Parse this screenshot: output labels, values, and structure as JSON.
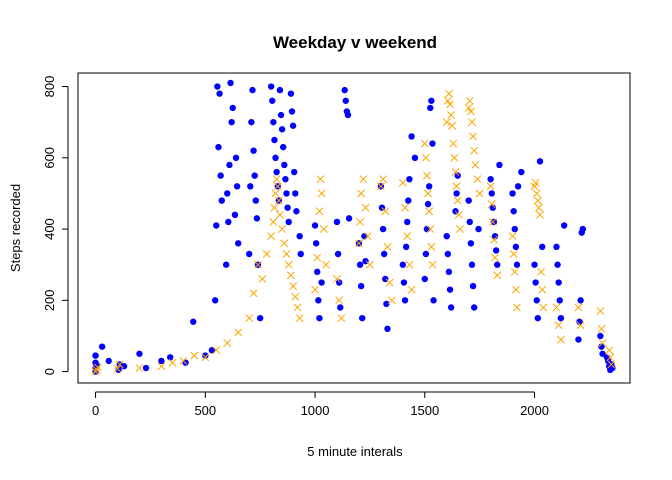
{
  "chart_data": {
    "type": "scatter",
    "title": "Weekday v weekend",
    "xlabel": "5 minute interals",
    "ylabel": "Steps recorded",
    "xlim": [
      -80,
      2435
    ],
    "ylim": [
      -32,
      838
    ],
    "xticks": [
      0,
      500,
      1000,
      1500,
      2000
    ],
    "yticks": [
      0,
      200,
      400,
      600,
      800
    ],
    "grid": false,
    "legend": "none",
    "series": [
      {
        "color": "#0000ff",
        "marker": "filled-circle",
        "points": [
          [
            0,
            0
          ],
          [
            0,
            10
          ],
          [
            0,
            25
          ],
          [
            0,
            45
          ],
          [
            5,
            18
          ],
          [
            30,
            70
          ],
          [
            60,
            30
          ],
          [
            105,
            5
          ],
          [
            110,
            20
          ],
          [
            130,
            15
          ],
          [
            200,
            50
          ],
          [
            230,
            10
          ],
          [
            300,
            30
          ],
          [
            340,
            40
          ],
          [
            410,
            25
          ],
          [
            445,
            140
          ],
          [
            500,
            45
          ],
          [
            530,
            60
          ],
          [
            545,
            200
          ],
          [
            550,
            410
          ],
          [
            555,
            800
          ],
          [
            560,
            630
          ],
          [
            565,
            780
          ],
          [
            570,
            550
          ],
          [
            575,
            480
          ],
          [
            595,
            300
          ],
          [
            600,
            500
          ],
          [
            605,
            420
          ],
          [
            610,
            580
          ],
          [
            615,
            810
          ],
          [
            620,
            700
          ],
          [
            625,
            740
          ],
          [
            635,
            440
          ],
          [
            640,
            600
          ],
          [
            645,
            520
          ],
          [
            650,
            360
          ],
          [
            700,
            330
          ],
          [
            705,
            520
          ],
          [
            710,
            700
          ],
          [
            715,
            790
          ],
          [
            720,
            620
          ],
          [
            725,
            550
          ],
          [
            730,
            480
          ],
          [
            735,
            430
          ],
          [
            740,
            300
          ],
          [
            750,
            150
          ],
          [
            800,
            800
          ],
          [
            805,
            760
          ],
          [
            810,
            700
          ],
          [
            815,
            650
          ],
          [
            820,
            600
          ],
          [
            825,
            560
          ],
          [
            830,
            520
          ],
          [
            835,
            480
          ],
          [
            840,
            790
          ],
          [
            845,
            720
          ],
          [
            850,
            680
          ],
          [
            855,
            630
          ],
          [
            860,
            580
          ],
          [
            865,
            540
          ],
          [
            870,
            500
          ],
          [
            875,
            460
          ],
          [
            880,
            420
          ],
          [
            890,
            780
          ],
          [
            895,
            730
          ],
          [
            900,
            690
          ],
          [
            905,
            560
          ],
          [
            910,
            500
          ],
          [
            915,
            450
          ],
          [
            930,
            380
          ],
          [
            935,
            330
          ],
          [
            1000,
            410
          ],
          [
            1005,
            360
          ],
          [
            1010,
            280
          ],
          [
            1015,
            200
          ],
          [
            1020,
            150
          ],
          [
            1030,
            250
          ],
          [
            1100,
            420
          ],
          [
            1105,
            330
          ],
          [
            1110,
            250
          ],
          [
            1115,
            180
          ],
          [
            1135,
            790
          ],
          [
            1140,
            760
          ],
          [
            1145,
            730
          ],
          [
            1150,
            720
          ],
          [
            1155,
            430
          ],
          [
            1200,
            360
          ],
          [
            1205,
            300
          ],
          [
            1210,
            240
          ],
          [
            1215,
            150
          ],
          [
            1225,
            380
          ],
          [
            1230,
            310
          ],
          [
            1300,
            520
          ],
          [
            1305,
            460
          ],
          [
            1310,
            400
          ],
          [
            1315,
            330
          ],
          [
            1320,
            260
          ],
          [
            1325,
            190
          ],
          [
            1330,
            120
          ],
          [
            1400,
            300
          ],
          [
            1405,
            250
          ],
          [
            1410,
            200
          ],
          [
            1415,
            350
          ],
          [
            1420,
            420
          ],
          [
            1425,
            480
          ],
          [
            1430,
            540
          ],
          [
            1440,
            660
          ],
          [
            1455,
            600
          ],
          [
            1500,
            260
          ],
          [
            1505,
            330
          ],
          [
            1510,
            400
          ],
          [
            1515,
            470
          ],
          [
            1520,
            520
          ],
          [
            1525,
            740
          ],
          [
            1530,
            760
          ],
          [
            1535,
            640
          ],
          [
            1540,
            200
          ],
          [
            1600,
            380
          ],
          [
            1605,
            330
          ],
          [
            1610,
            280
          ],
          [
            1615,
            230
          ],
          [
            1620,
            180
          ],
          [
            1640,
            450
          ],
          [
            1645,
            500
          ],
          [
            1650,
            550
          ],
          [
            1700,
            480
          ],
          [
            1705,
            420
          ],
          [
            1710,
            360
          ],
          [
            1715,
            300
          ],
          [
            1720,
            240
          ],
          [
            1725,
            180
          ],
          [
            1745,
            400
          ],
          [
            1800,
            540
          ],
          [
            1805,
            500
          ],
          [
            1810,
            460
          ],
          [
            1815,
            420
          ],
          [
            1820,
            380
          ],
          [
            1825,
            340
          ],
          [
            1830,
            300
          ],
          [
            1840,
            580
          ],
          [
            1900,
            500
          ],
          [
            1905,
            450
          ],
          [
            1910,
            400
          ],
          [
            1915,
            350
          ],
          [
            1920,
            300
          ],
          [
            1925,
            520
          ],
          [
            1940,
            560
          ],
          [
            2000,
            300
          ],
          [
            2005,
            250
          ],
          [
            2010,
            200
          ],
          [
            2015,
            150
          ],
          [
            2025,
            590
          ],
          [
            2035,
            350
          ],
          [
            2100,
            350
          ],
          [
            2105,
            300
          ],
          [
            2110,
            250
          ],
          [
            2115,
            200
          ],
          [
            2120,
            150
          ],
          [
            2135,
            410
          ],
          [
            2200,
            90
          ],
          [
            2205,
            140
          ],
          [
            2210,
            200
          ],
          [
            2215,
            390
          ],
          [
            2220,
            400
          ],
          [
            2300,
            100
          ],
          [
            2305,
            70
          ],
          [
            2310,
            50
          ],
          [
            2330,
            40
          ],
          [
            2335,
            30
          ],
          [
            2340,
            15
          ],
          [
            2345,
            5
          ],
          [
            2350,
            20
          ],
          [
            2355,
            10
          ]
        ]
      },
      {
        "color": "#ffa500",
        "marker": "x",
        "points": [
          [
            0,
            0
          ],
          [
            5,
            5
          ],
          [
            10,
            12
          ],
          [
            100,
            8
          ],
          [
            110,
            20
          ],
          [
            200,
            10
          ],
          [
            300,
            15
          ],
          [
            350,
            25
          ],
          [
            400,
            30
          ],
          [
            450,
            45
          ],
          [
            500,
            40
          ],
          [
            550,
            60
          ],
          [
            600,
            80
          ],
          [
            650,
            110
          ],
          [
            700,
            150
          ],
          [
            720,
            220
          ],
          [
            740,
            300
          ],
          [
            760,
            260
          ],
          [
            780,
            330
          ],
          [
            800,
            380
          ],
          [
            810,
            420
          ],
          [
            815,
            460
          ],
          [
            820,
            500
          ],
          [
            825,
            540
          ],
          [
            830,
            520
          ],
          [
            835,
            480
          ],
          [
            840,
            440
          ],
          [
            850,
            400
          ],
          [
            860,
            360
          ],
          [
            870,
            330
          ],
          [
            880,
            300
          ],
          [
            890,
            270
          ],
          [
            900,
            240
          ],
          [
            910,
            210
          ],
          [
            920,
            180
          ],
          [
            930,
            150
          ],
          [
            1000,
            230
          ],
          [
            1010,
            320
          ],
          [
            1020,
            450
          ],
          [
            1025,
            540
          ],
          [
            1030,
            500
          ],
          [
            1040,
            400
          ],
          [
            1050,
            300
          ],
          [
            1100,
            260
          ],
          [
            1110,
            200
          ],
          [
            1120,
            150
          ],
          [
            1200,
            360
          ],
          [
            1205,
            420
          ],
          [
            1210,
            500
          ],
          [
            1220,
            540
          ],
          [
            1230,
            460
          ],
          [
            1240,
            380
          ],
          [
            1250,
            300
          ],
          [
            1300,
            520
          ],
          [
            1310,
            540
          ],
          [
            1320,
            450
          ],
          [
            1330,
            350
          ],
          [
            1340,
            250
          ],
          [
            1350,
            200
          ],
          [
            1400,
            530
          ],
          [
            1410,
            460
          ],
          [
            1420,
            380
          ],
          [
            1430,
            300
          ],
          [
            1440,
            230
          ],
          [
            1500,
            640
          ],
          [
            1505,
            600
          ],
          [
            1510,
            550
          ],
          [
            1515,
            500
          ],
          [
            1520,
            450
          ],
          [
            1525,
            400
          ],
          [
            1530,
            350
          ],
          [
            1535,
            300
          ],
          [
            1600,
            700
          ],
          [
            1605,
            760
          ],
          [
            1610,
            780
          ],
          [
            1615,
            750
          ],
          [
            1620,
            720
          ],
          [
            1625,
            690
          ],
          [
            1630,
            640
          ],
          [
            1635,
            600
          ],
          [
            1640,
            560
          ],
          [
            1645,
            520
          ],
          [
            1650,
            480
          ],
          [
            1655,
            440
          ],
          [
            1660,
            400
          ],
          [
            1700,
            740
          ],
          [
            1705,
            760
          ],
          [
            1710,
            730
          ],
          [
            1715,
            700
          ],
          [
            1720,
            660
          ],
          [
            1725,
            620
          ],
          [
            1730,
            580
          ],
          [
            1740,
            540
          ],
          [
            1750,
            500
          ],
          [
            1800,
            520
          ],
          [
            1805,
            470
          ],
          [
            1810,
            420
          ],
          [
            1815,
            370
          ],
          [
            1820,
            320
          ],
          [
            1830,
            270
          ],
          [
            1900,
            380
          ],
          [
            1905,
            330
          ],
          [
            1910,
            280
          ],
          [
            1915,
            230
          ],
          [
            1920,
            180
          ],
          [
            2000,
            520
          ],
          [
            2005,
            530
          ],
          [
            2010,
            500
          ],
          [
            2015,
            480
          ],
          [
            2020,
            460
          ],
          [
            2025,
            440
          ],
          [
            2030,
            280
          ],
          [
            2035,
            230
          ],
          [
            2040,
            180
          ],
          [
            2100,
            180
          ],
          [
            2110,
            130
          ],
          [
            2120,
            90
          ],
          [
            2200,
            180
          ],
          [
            2210,
            130
          ],
          [
            2300,
            170
          ],
          [
            2305,
            120
          ],
          [
            2310,
            80
          ],
          [
            2340,
            60
          ],
          [
            2345,
            40
          ],
          [
            2350,
            20
          ]
        ]
      }
    ]
  }
}
